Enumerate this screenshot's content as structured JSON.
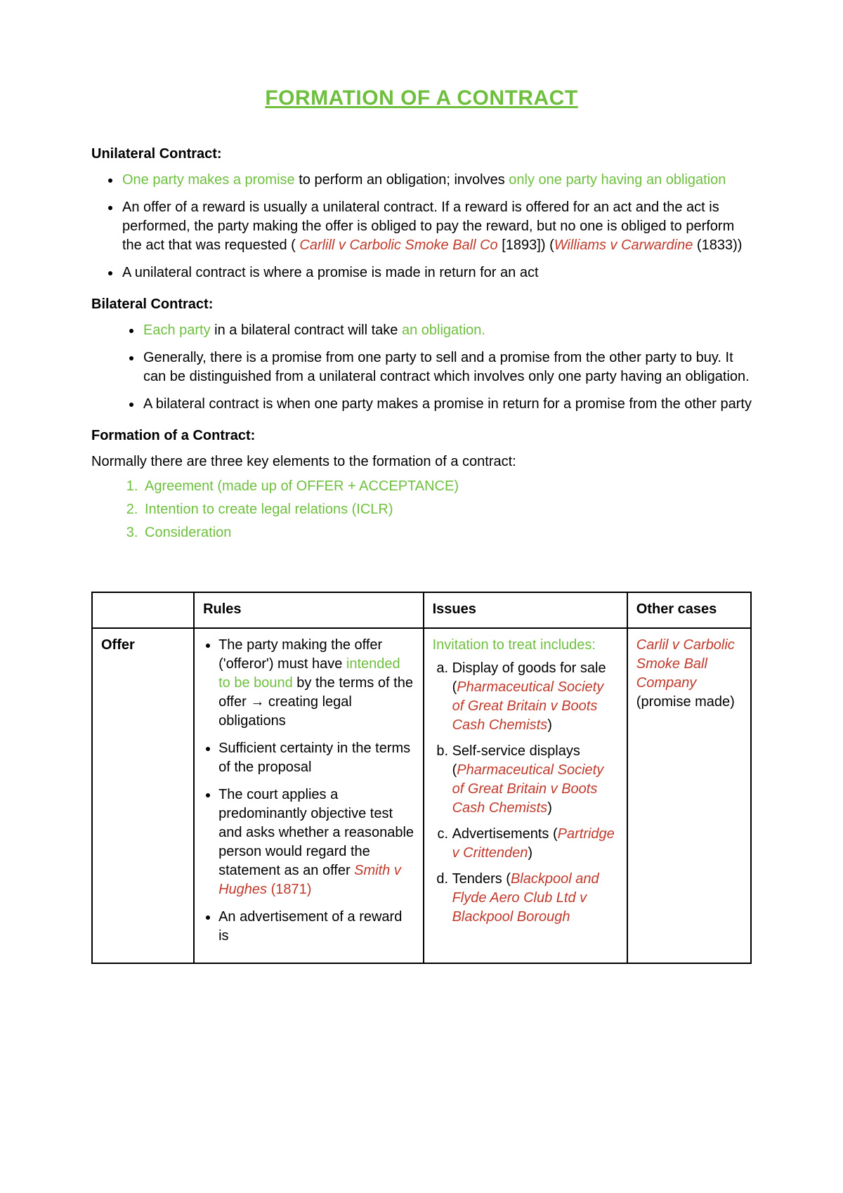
{
  "colors": {
    "title": "#6fbf3f",
    "green": "#6fbf3f",
    "red": "#c0392b",
    "text": "#000000",
    "background": "#ffffff",
    "border": "#000000"
  },
  "title": "FORMATION OF A CONTRACT",
  "sections": {
    "unilateral": {
      "heading": "Unilateral Contract:",
      "b1_g1": "One party makes a promise",
      "b1_t1": " to perform an obligation; involves ",
      "b1_g2": "only one party having an obligation",
      "b2_t1": "An offer of a reward is usually a unilateral contract. If a reward is offered for an act and the act is performed, the party making the offer is obliged to pay the reward, but no one is obliged to perform the act that was requested ( ",
      "b2_r1": "Carlill v Carbolic Smoke Ball Co",
      "b2_t2": " [1893]) (",
      "b2_r2": "Williams v Carwardine",
      "b2_t3": " (1833))",
      "b3": "A unilateral contract is where a promise is made in return for an act"
    },
    "bilateral": {
      "heading": "Bilateral Contract:",
      "b1_g1": "Each party",
      "b1_t1": " in a bilateral contract will take ",
      "b1_g2": "an obligation.",
      "b2": "Generally, there is a promise from one party to sell and a promise from the other party to buy. It can be distinguished from a unilateral contract which involves only one party having an obligation.",
      "b3": "A bilateral contract is when one party makes a promise in return for a promise from the other party"
    },
    "formation": {
      "heading": "Formation of a Contract:",
      "intro": "Normally there are three key elements to the formation of a contract:",
      "li1": "Agreement (made up of OFFER + ACCEPTANCE)",
      "li2": "Intention to create legal relations (ICLR)",
      "li3": "Consideration"
    }
  },
  "table": {
    "headers": {
      "rules": "Rules",
      "issues": "Issues",
      "other": "Other cases"
    },
    "row1": {
      "label": "Offer",
      "rules": {
        "r1_t1": "The party making the offer ('offeror') must have ",
        "r1_g1": "intended to be bound",
        "r1_t2": " by the terms of the offer ",
        "r1_arrow": "→",
        "r1_t3": " creating legal obligations",
        "r2": "Sufficient certainty in the terms of the proposal",
        "r3_t1": "The court applies a predominantly objective test and asks whether a reasonable person would regard the statement as an offer ",
        "r3_r1": "Smith v Hughes",
        "r3_t2": " (1871)",
        "r4": "An advertisement of a reward is"
      },
      "issues": {
        "head": "Invitation to treat includes:",
        "a_t1": "Display of goods for sale (",
        "a_r1": "Pharmaceutical Society of Great Britain v Boots Cash Chemists",
        "a_t2": ")",
        "b_t1": "Self-service displays (",
        "b_r1": "Pharmaceutical Society of Great Britain v Boots Cash Chemists",
        "b_t2": ")",
        "c_t1": "Advertisements (",
        "c_r1": "Partridge v Crittenden",
        "c_t2": ")",
        "d_t1": "Tenders (",
        "d_r1": "Blackpool and Flyde Aero Club Ltd v Blackpool Borough",
        "d_t2": ""
      },
      "other": {
        "r1": "Carlil v Carbolic Smoke Ball Company",
        "t1": " (promise made)"
      }
    }
  }
}
